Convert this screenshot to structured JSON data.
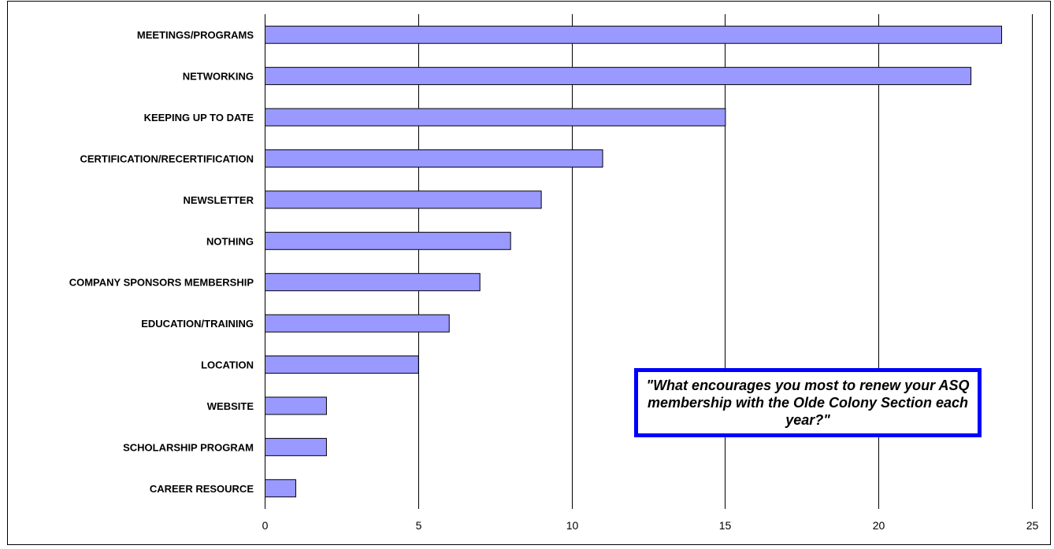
{
  "chart_data": {
    "type": "bar",
    "orientation": "horizontal",
    "categories": [
      "MEETINGS/PROGRAMS",
      "NETWORKING",
      "KEEPING UP TO DATE",
      "CERTIFICATION/RECERTIFICATION",
      "NEWSLETTER",
      "NOTHING",
      "COMPANY SPONSORS MEMBERSHIP",
      "EDUCATION/TRAINING",
      "LOCATION",
      "WEBSITE",
      "SCHOLARSHIP PROGRAM",
      "CAREER RESOURCE"
    ],
    "values": [
      24,
      23,
      15,
      11,
      9,
      8,
      7,
      6,
      5,
      2,
      2,
      1
    ],
    "xlim": [
      0,
      25
    ],
    "xticks": [
      0,
      5,
      10,
      15,
      20,
      25
    ],
    "grid": "vertical",
    "legend": "none",
    "annotation": "\"What encourages you most to renew your ASQ membership with the Olde Colony Section each year?\"",
    "colors": {
      "bar": "#9999ff",
      "bar_border": "#000000",
      "grid": "#000000",
      "annotation_border": "#0000ff"
    }
  }
}
